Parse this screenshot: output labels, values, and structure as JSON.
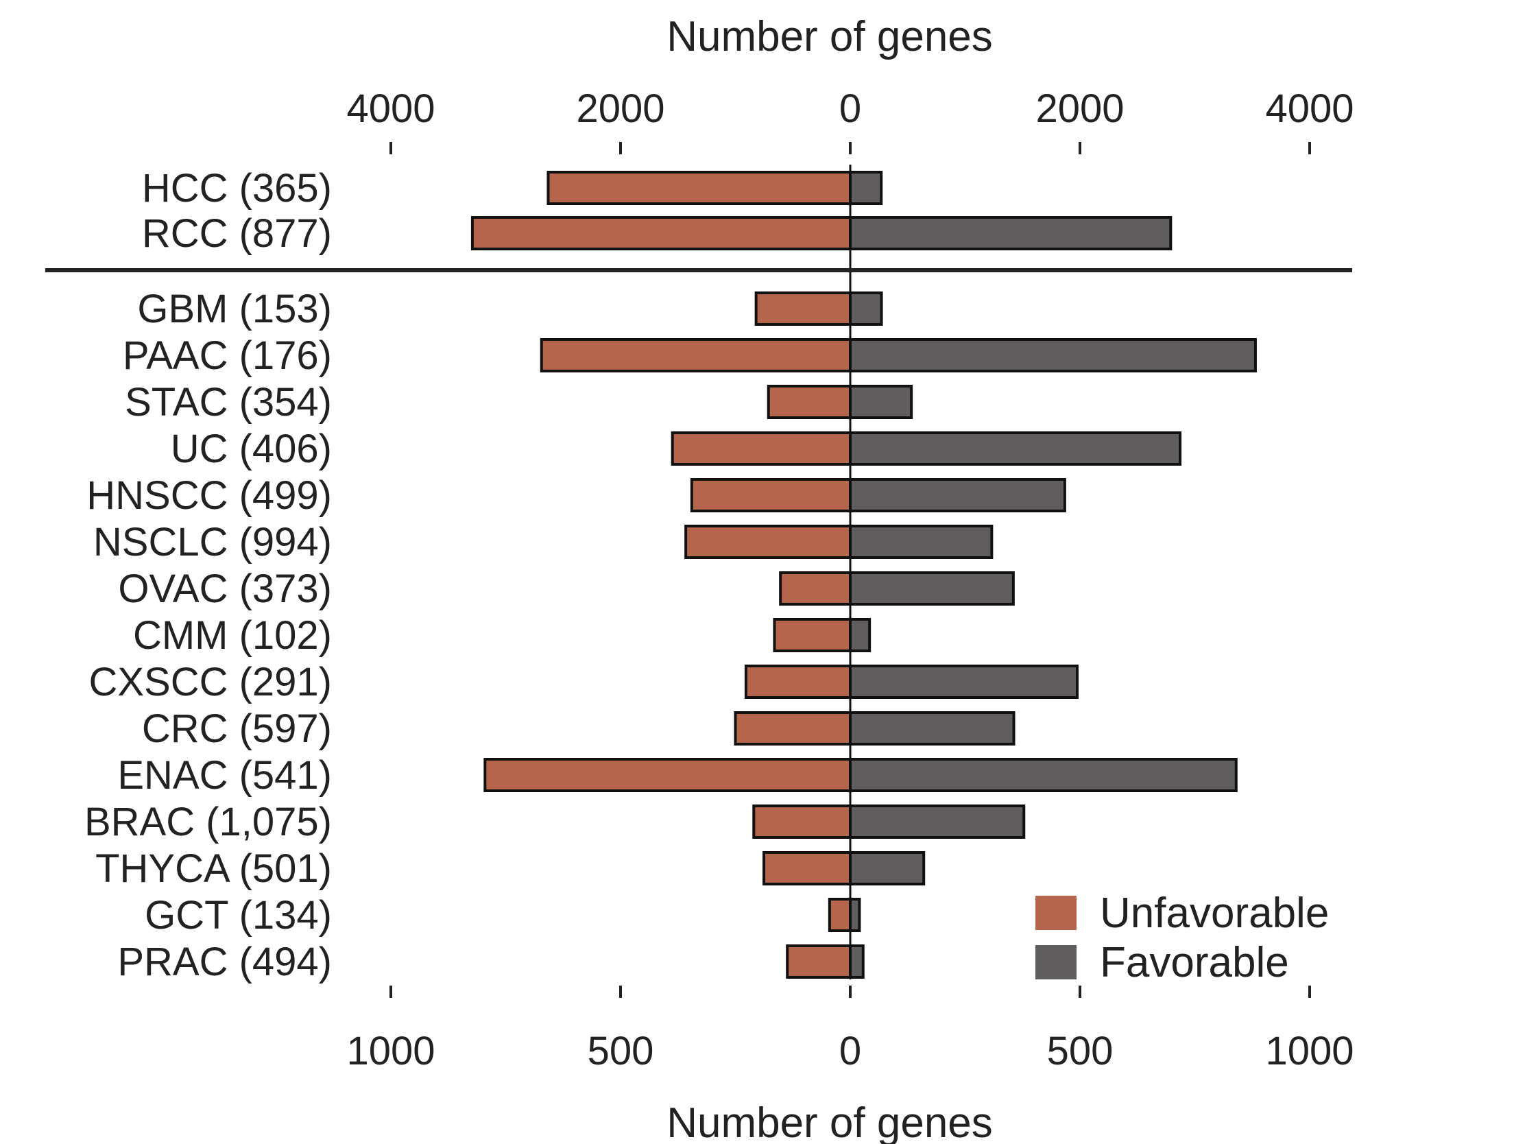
{
  "chart_data": {
    "type": "bar",
    "orientation": "horizontal",
    "layout": "diverging",
    "top_axis": {
      "label": "Number of genes",
      "ticks": [
        -4000,
        -2000,
        0,
        2000,
        4000
      ],
      "tick_labels": [
        "4000",
        "2000",
        "0",
        "2000",
        "4000"
      ],
      "range": [
        -4000,
        4000
      ]
    },
    "bottom_axis": {
      "label": "Number of genes",
      "ticks": [
        -1000,
        -500,
        0,
        500,
        1000
      ],
      "tick_labels": [
        "1000",
        "500",
        "0",
        "500",
        "1000"
      ],
      "range": [
        -1000,
        1000
      ]
    },
    "legend": {
      "position": "bottom-right",
      "entries": [
        {
          "label": "Unfavorable",
          "color": "#b5654b"
        },
        {
          "label": "Favorable",
          "color": "#5f5d5d"
        }
      ]
    },
    "colors": {
      "unfavorable": "#b5654b",
      "favorable": "#5f5d5d",
      "outline": "#111111",
      "separator": "#222222"
    },
    "groups": [
      {
        "axis": "top",
        "categories": [
          "HCC (365)",
          "RCC (877)"
        ],
        "series": [
          {
            "name": "Unfavorable",
            "values": [
              2630,
              3290
            ]
          },
          {
            "name": "Favorable",
            "values": [
              270,
              2790
            ]
          }
        ]
      },
      {
        "axis": "bottom",
        "categories": [
          "GBM (153)",
          "PAAC (176)",
          "STAC (354)",
          "UC (406)",
          "HNSCC (499)",
          "NSCLC (994)",
          "OVAC (373)",
          "CMM (102)",
          "CXSCC (291)",
          "CRC (597)",
          "ENAC (541)",
          "BRAC (1,075)",
          "THYCA (501)",
          "GCT (134)",
          "PRAC (494)"
        ],
        "series": [
          {
            "name": "Unfavorable",
            "values": [
              205,
              672,
              178,
              387,
              345,
              358,
              152,
              165,
              227,
              250,
              795,
              210,
              188,
              45,
              137
            ]
          },
          {
            "name": "Favorable",
            "values": [
              68,
              882,
              133,
              718,
              467,
              308,
              355,
              42,
              494,
              356,
              840,
              378,
              160,
              20,
              28
            ]
          }
        ]
      }
    ]
  }
}
